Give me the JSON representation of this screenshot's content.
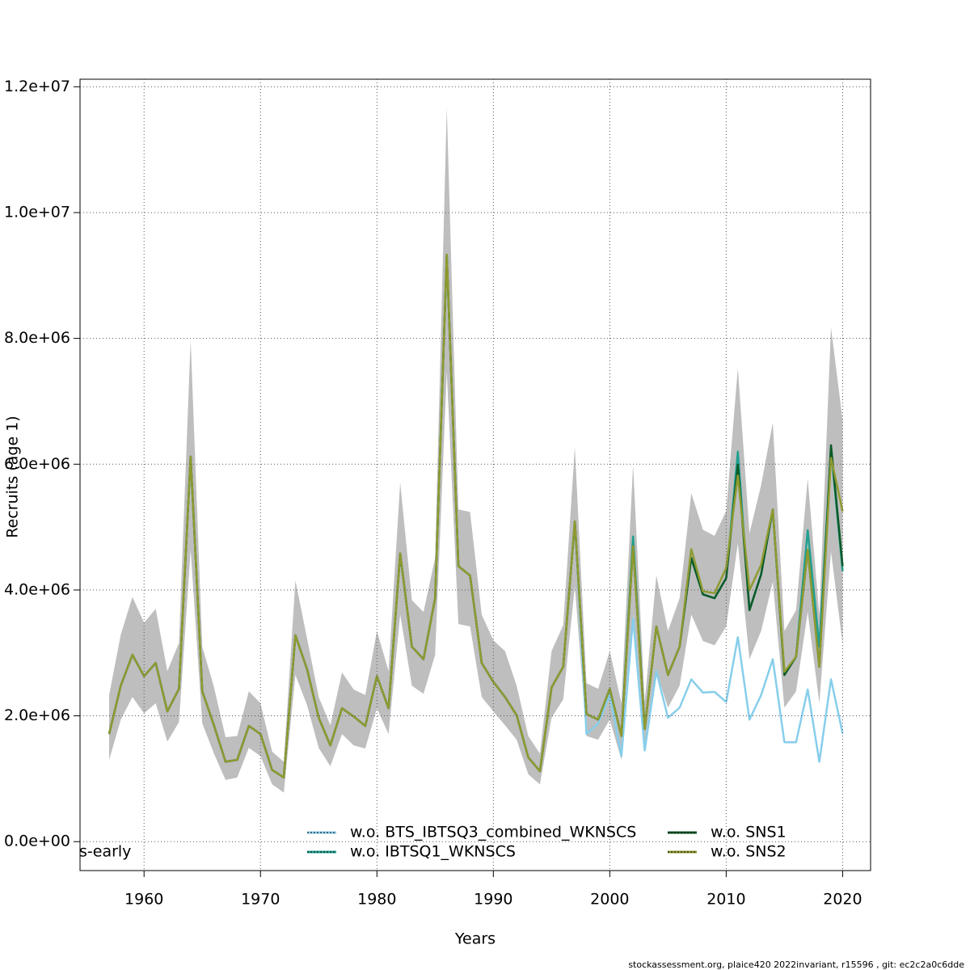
{
  "chart_data": {
    "type": "line",
    "x_label": "Years",
    "y_label": "Recruits (age 1)",
    "annotation": "s-early",
    "footer": "stockassessment.org, plaice420  2022invariant, r15596 , git: ec2c2a0c6dde",
    "x": [
      1957,
      1958,
      1959,
      1960,
      1961,
      1962,
      1963,
      1964,
      1965,
      1966,
      1967,
      1968,
      1969,
      1970,
      1971,
      1972,
      1973,
      1974,
      1975,
      1976,
      1977,
      1978,
      1979,
      1980,
      1981,
      1982,
      1983,
      1984,
      1985,
      1986,
      1987,
      1988,
      1989,
      1990,
      1991,
      1992,
      1993,
      1994,
      1995,
      1996,
      1997,
      1998,
      1999,
      2000,
      2001,
      2002,
      2003,
      2004,
      2005,
      2006,
      2007,
      2008,
      2009,
      2010,
      2011,
      2012,
      2013,
      2014,
      2015,
      2016,
      2017,
      2018,
      2019,
      2020
    ],
    "xlim": [
      1954.5,
      2022.4
    ],
    "xticks": [
      1960,
      1970,
      1980,
      1990,
      2000,
      2010,
      2020
    ],
    "ylim": [
      -460000,
      12120000
    ],
    "yticks": [
      {
        "value": 0,
        "label": "0.0e+00"
      },
      {
        "value": 2000000,
        "label": "2.0e+06"
      },
      {
        "value": 4000000,
        "label": "4.0e+06"
      },
      {
        "value": 6000000,
        "label": "6.0e+06"
      },
      {
        "value": 8000000,
        "label": "8.0e+06"
      },
      {
        "value": 10000000,
        "label": "1.0e+07"
      },
      {
        "value": 12000000,
        "label": "1.2e+07"
      }
    ],
    "grid": true,
    "band": {
      "color": "#bebebe",
      "upper": [
        2330000.0,
        3290000.0,
        3890000.0,
        3480000.0,
        3700000.0,
        2710000.0,
        3160000.0,
        7980000.0,
        3100000.0,
        2460000.0,
        1660000.0,
        1680000.0,
        2390000.0,
        2200000.0,
        1430000.0,
        1270000.0,
        4150000.0,
        3230000.0,
        2300000.0,
        1850000.0,
        2690000.0,
        2420000.0,
        2330000.0,
        3350000.0,
        2710000.0,
        5710000.0,
        3840000.0,
        3650000.0,
        4510000.0,
        11670000.0,
        5280000.0,
        5240000.0,
        3610000.0,
        3200000.0,
        3030000.0,
        2480000.0,
        1680000.0,
        1400000.0,
        3030000.0,
        3440000.0,
        6270000.0,
        2520000.0,
        2430000.0,
        3030000.0,
        2200000.0,
        5990000.0,
        2220000.0,
        4230000.0,
        3350000.0,
        3870000.0,
        5540000.0,
        4960000.0,
        4860000.0,
        5260000.0,
        7530000.0,
        4900000.0,
        5670000.0,
        6660000.0,
        3350000.0,
        3680000.0,
        5770000.0,
        3610000.0,
        8170000.0,
        6700000.0
      ],
      "lower": [
        1300000.0,
        1940000.0,
        2300000.0,
        2040000.0,
        2200000.0,
        1590000.0,
        1900000.0,
        4640000.0,
        1880000.0,
        1400000.0,
        980000.0,
        1020000.0,
        1490000.0,
        1360000.0,
        910000.0,
        780000.0,
        2650000.0,
        2170000.0,
        1490000.0,
        1200000.0,
        1710000.0,
        1530000.0,
        1480000.0,
        2120000.0,
        1710000.0,
        3610000.0,
        2480000.0,
        2350000.0,
        2970000.0,
        7470000.0,
        3460000.0,
        3420000.0,
        2300000.0,
        2070000.0,
        1850000.0,
        1620000.0,
        1070000.0,
        910000.0,
        1970000.0,
        2260000.0,
        4060000.0,
        1680000.0,
        1620000.0,
        1940000.0,
        1300000.0,
        3610000.0,
        1430000.0,
        2710000.0,
        2130000.0,
        2480000.0,
        3610000.0,
        3190000.0,
        3120000.0,
        3420000.0,
        4740000.0,
        2900000.0,
        3350000.0,
        4130000.0,
        2130000.0,
        2390000.0,
        3650000.0,
        2200000.0,
        4610000.0,
        3140000.0
      ]
    },
    "series": [
      {
        "name": "w.o. BTS_IBTSQ3_combined_WKNSCS",
        "color": "#87ceeb",
        "values": [
          1710000.0,
          2480000.0,
          2970000.0,
          2630000.0,
          2840000.0,
          2070000.0,
          2430000.0,
          6120000.0,
          2390000.0,
          1850000.0,
          1270000.0,
          1300000.0,
          1840000.0,
          1710000.0,
          1140000.0,
          1020000.0,
          3280000.0,
          2740000.0,
          1970000.0,
          1530000.0,
          2120000.0,
          1990000.0,
          1840000.0,
          2630000.0,
          2120000.0,
          4580000.0,
          3100000.0,
          2900000.0,
          3870000.0,
          9330000.0,
          4380000.0,
          4230000.0,
          2840000.0,
          2540000.0,
          2300000.0,
          2010000.0,
          1340000.0,
          1120000.0,
          2450000.0,
          2780000.0,
          5090000.0,
          1710000.0,
          1880000.0,
          2330000.0,
          1360000.0,
          3550000.0,
          1450000.0,
          2710000.0,
          1970000.0,
          2130000.0,
          2580000.0,
          2370000.0,
          2380000.0,
          2220000.0,
          3250000.0,
          1940000.0,
          2330000.0,
          2900000.0,
          1580000.0,
          1580000.0,
          2420000.0,
          1270000.0,
          2580000.0,
          1720000.0
        ]
      },
      {
        "name": "w.o. IBTSQ1_WKNSCS",
        "color": "#20a090",
        "values": [
          1710000.0,
          2480000.0,
          2970000.0,
          2630000.0,
          2840000.0,
          2070000.0,
          2430000.0,
          6120000.0,
          2390000.0,
          1850000.0,
          1270000.0,
          1300000.0,
          1840000.0,
          1710000.0,
          1140000.0,
          1020000.0,
          3280000.0,
          2740000.0,
          1970000.0,
          1530000.0,
          2120000.0,
          1990000.0,
          1840000.0,
          2630000.0,
          2120000.0,
          4580000.0,
          3100000.0,
          2900000.0,
          3870000.0,
          9330000.0,
          4380000.0,
          4230000.0,
          2840000.0,
          2540000.0,
          2300000.0,
          2010000.0,
          1340000.0,
          1120000.0,
          2450000.0,
          2780000.0,
          5090000.0,
          2030000.0,
          1940000.0,
          2430000.0,
          1680000.0,
          4850000.0,
          1790000.0,
          3420000.0,
          2650000.0,
          3100000.0,
          4510000.0,
          3930000.0,
          3870000.0,
          4190000.0,
          6200000.0,
          3680000.0,
          4250000.0,
          5280000.0,
          2650000.0,
          2940000.0,
          4950000.0,
          3100000.0,
          6250000.0,
          4300000.0
        ]
      },
      {
        "name": "w.o. SNS1",
        "color": "#0a5a28",
        "values": [
          1710000.0,
          2480000.0,
          2970000.0,
          2630000.0,
          2840000.0,
          2070000.0,
          2430000.0,
          6120000.0,
          2390000.0,
          1850000.0,
          1270000.0,
          1300000.0,
          1840000.0,
          1710000.0,
          1140000.0,
          1020000.0,
          3280000.0,
          2740000.0,
          1970000.0,
          1530000.0,
          2120000.0,
          1990000.0,
          1840000.0,
          2630000.0,
          2120000.0,
          4580000.0,
          3100000.0,
          2900000.0,
          3870000.0,
          9330000.0,
          4380000.0,
          4230000.0,
          2840000.0,
          2540000.0,
          2300000.0,
          2010000.0,
          1340000.0,
          1120000.0,
          2450000.0,
          2780000.0,
          5090000.0,
          2030000.0,
          1940000.0,
          2430000.0,
          1680000.0,
          4700000.0,
          1790000.0,
          3420000.0,
          2650000.0,
          3100000.0,
          4510000.0,
          3930000.0,
          3870000.0,
          4190000.0,
          5990000.0,
          3680000.0,
          4250000.0,
          5280000.0,
          2650000.0,
          2940000.0,
          4640000.0,
          2780000.0,
          6300000.0,
          4380000.0
        ]
      },
      {
        "name": "w.o. SNS2",
        "color": "#8f9a30",
        "values": [
          1710000.0,
          2480000.0,
          2970000.0,
          2630000.0,
          2840000.0,
          2070000.0,
          2430000.0,
          6120000.0,
          2390000.0,
          1850000.0,
          1270000.0,
          1300000.0,
          1840000.0,
          1710000.0,
          1140000.0,
          1020000.0,
          3280000.0,
          2740000.0,
          1970000.0,
          1530000.0,
          2120000.0,
          1990000.0,
          1840000.0,
          2630000.0,
          2120000.0,
          4580000.0,
          3100000.0,
          2900000.0,
          3870000.0,
          9330000.0,
          4380000.0,
          4230000.0,
          2840000.0,
          2540000.0,
          2300000.0,
          2010000.0,
          1340000.0,
          1120000.0,
          2450000.0,
          2780000.0,
          5090000.0,
          2030000.0,
          1940000.0,
          2430000.0,
          1680000.0,
          4700000.0,
          1790000.0,
          3420000.0,
          2650000.0,
          3100000.0,
          4650000.0,
          3980000.0,
          3950000.0,
          4350000.0,
          5820000.0,
          4000000.0,
          4400000.0,
          5280000.0,
          2700000.0,
          2940000.0,
          4640000.0,
          2780000.0,
          6100000.0,
          5250000.0
        ]
      }
    ]
  }
}
